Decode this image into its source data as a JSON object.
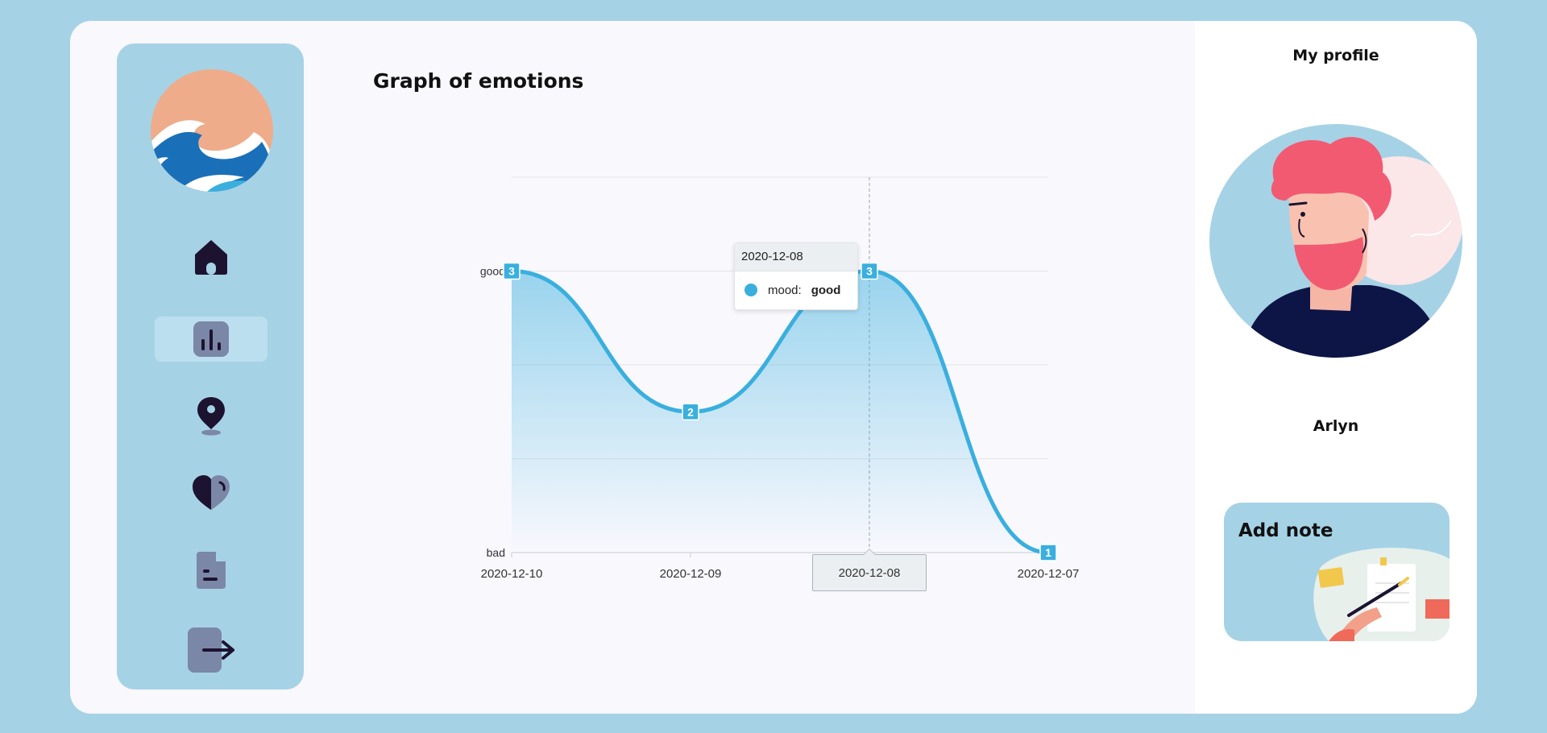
{
  "main": {
    "title": "Graph of emotions"
  },
  "sidebar": {
    "items": [
      {
        "name": "home",
        "icon": "home-icon",
        "active": false
      },
      {
        "name": "statistics",
        "icon": "bar-chart-icon",
        "active": true
      },
      {
        "name": "location",
        "icon": "map-pin-icon",
        "active": false
      },
      {
        "name": "emotions",
        "icon": "heart-icon",
        "active": false
      },
      {
        "name": "notes",
        "icon": "document-icon",
        "active": false
      },
      {
        "name": "logout",
        "icon": "logout-icon",
        "active": false
      }
    ]
  },
  "tooltip": {
    "date": "2020-12-08",
    "series_label": "mood:",
    "value": "good"
  },
  "crosshair_label": "2020-12-08",
  "chart_data": {
    "type": "area",
    "x": [
      "2020-12-10",
      "2020-12-09",
      "2020-12-08",
      "2020-12-07"
    ],
    "series": [
      {
        "name": "mood",
        "values": [
          3,
          2,
          3,
          1
        ]
      }
    ],
    "y_labels": [
      {
        "value": 3,
        "label": "good"
      },
      {
        "value": 1,
        "label": "bad"
      }
    ],
    "ylim": [
      1,
      3.667
    ],
    "grid": true,
    "color": "#3aafde",
    "highlighted_x": "2020-12-08"
  },
  "profile": {
    "title": "My profile",
    "username": "Arlyn",
    "add_note_label": "Add note"
  },
  "colors": {
    "background": "#a6d2e6",
    "card": "#f8f8fd",
    "accent": "#3aafde",
    "icon_dark": "#1c1330",
    "icon_muted": "#7b87a6"
  }
}
